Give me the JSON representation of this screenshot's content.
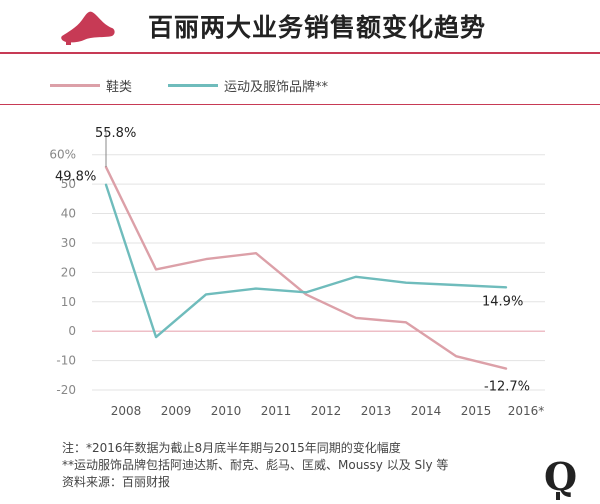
{
  "header": {
    "title": "百丽两大业务销售额变化趋势",
    "icon": "high-heel-shoe-icon"
  },
  "legend": {
    "items": [
      {
        "label": "鞋类",
        "color": "#dca0a8"
      },
      {
        "label": "运动及服饰品牌**",
        "color": "#6fbcbc"
      }
    ]
  },
  "chart_data": {
    "type": "line",
    "x": [
      "2008",
      "2009",
      "2010",
      "2011",
      "2012",
      "2013",
      "2014",
      "2015",
      "2016*"
    ],
    "series": [
      {
        "name": "鞋类",
        "color": "#dca0a8",
        "values": [
          55.8,
          21,
          24.5,
          26.5,
          12.5,
          4.5,
          3,
          -8.5,
          -12.7
        ]
      },
      {
        "name": "运动及服饰品牌**",
        "color": "#6fbcbc",
        "values": [
          49.8,
          -2,
          12.5,
          14.5,
          13.2,
          18.5,
          16.5,
          15.7,
          14.9
        ]
      }
    ],
    "y_ticks": [
      "60%",
      "50",
      "40",
      "30",
      "20",
      "10",
      "0",
      "-10",
      "-20"
    ],
    "ylim": [
      -20,
      65
    ],
    "zero_line_color": "#e9a9b4",
    "grid": true,
    "data_labels": [
      {
        "text": "55.8%",
        "series": 0,
        "index": 0
      },
      {
        "text": "49.8%",
        "series": 1,
        "index": 0
      },
      {
        "text": "14.9%",
        "series": 1,
        "index": 8
      },
      {
        "text": "-12.7%",
        "series": 0,
        "index": 8
      }
    ]
  },
  "footnotes": {
    "line1": "注：*2016年数据为截止8月底半年期与2015年同期的变化幅度",
    "line2": "**运动服饰品牌包括阿迪达斯、耐克、彪马、匡威、Moussy 以及 Sly 等",
    "line3": "资料来源：百丽财报"
  },
  "brand": {
    "letter": "Q",
    "color": "#222222"
  }
}
